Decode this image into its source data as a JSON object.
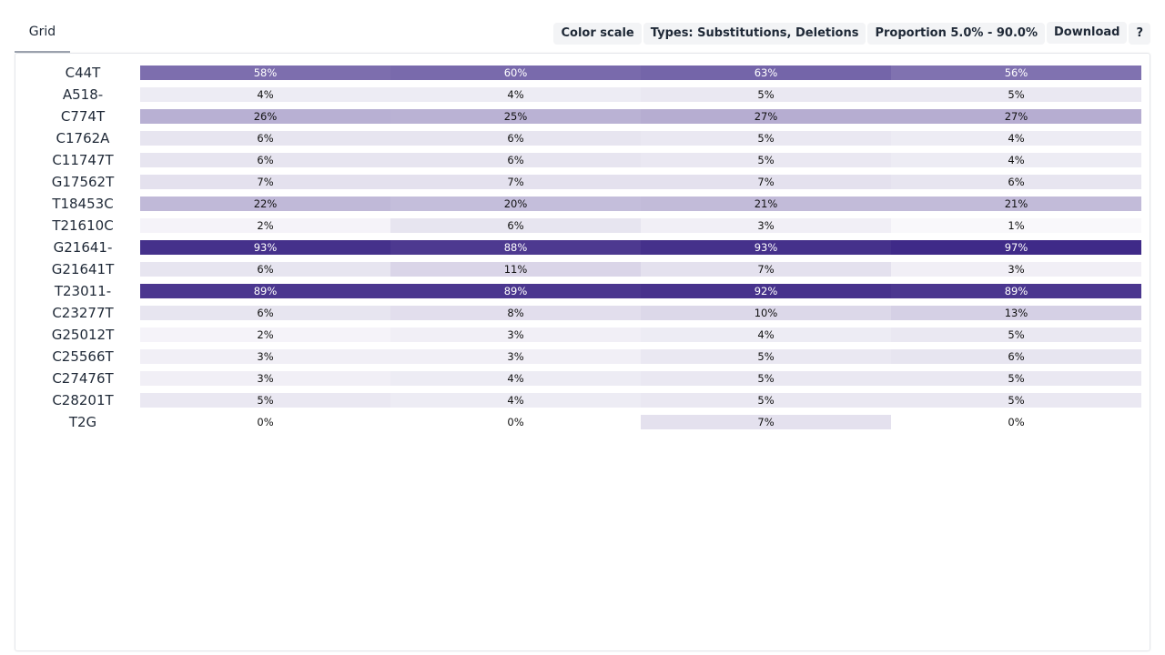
{
  "tabs": [
    {
      "label": "Grid"
    }
  ],
  "toolbar": {
    "color_scale": "Color scale",
    "types": "Types: Substitutions, Deletions",
    "proportion": "Proportion 5.0% - 90.0%",
    "download": "Download",
    "help": "?"
  },
  "colors": {
    "scale_low": "#ffffff",
    "scale_high": "#3b2585",
    "text_dark": "#111111",
    "text_light": "#ffffff"
  },
  "grid": {
    "rows": [
      {
        "mutation": "C44T",
        "values": [
          58,
          60,
          63,
          56
        ]
      },
      {
        "mutation": "A518-",
        "values": [
          4,
          4,
          5,
          5
        ]
      },
      {
        "mutation": "C774T",
        "values": [
          26,
          25,
          27,
          27
        ]
      },
      {
        "mutation": "C1762A",
        "values": [
          6,
          6,
          5,
          4
        ]
      },
      {
        "mutation": "C11747T",
        "values": [
          6,
          6,
          5,
          4
        ]
      },
      {
        "mutation": "G17562T",
        "values": [
          7,
          7,
          7,
          6
        ]
      },
      {
        "mutation": "T18453C",
        "values": [
          22,
          20,
          21,
          21
        ]
      },
      {
        "mutation": "T21610C",
        "values": [
          2,
          6,
          3,
          1
        ]
      },
      {
        "mutation": "G21641-",
        "values": [
          93,
          88,
          93,
          97
        ]
      },
      {
        "mutation": "G21641T",
        "values": [
          6,
          11,
          7,
          3
        ]
      },
      {
        "mutation": "T23011-",
        "values": [
          89,
          89,
          92,
          89
        ]
      },
      {
        "mutation": "C23277T",
        "values": [
          6,
          8,
          10,
          13
        ]
      },
      {
        "mutation": "G25012T",
        "values": [
          2,
          3,
          4,
          5
        ]
      },
      {
        "mutation": "C25566T",
        "values": [
          3,
          3,
          5,
          6
        ]
      },
      {
        "mutation": "C27476T",
        "values": [
          3,
          4,
          5,
          5
        ]
      },
      {
        "mutation": "C28201T",
        "values": [
          5,
          4,
          5,
          5
        ]
      },
      {
        "mutation": "T2G",
        "values": [
          0,
          0,
          7,
          0
        ]
      }
    ]
  }
}
